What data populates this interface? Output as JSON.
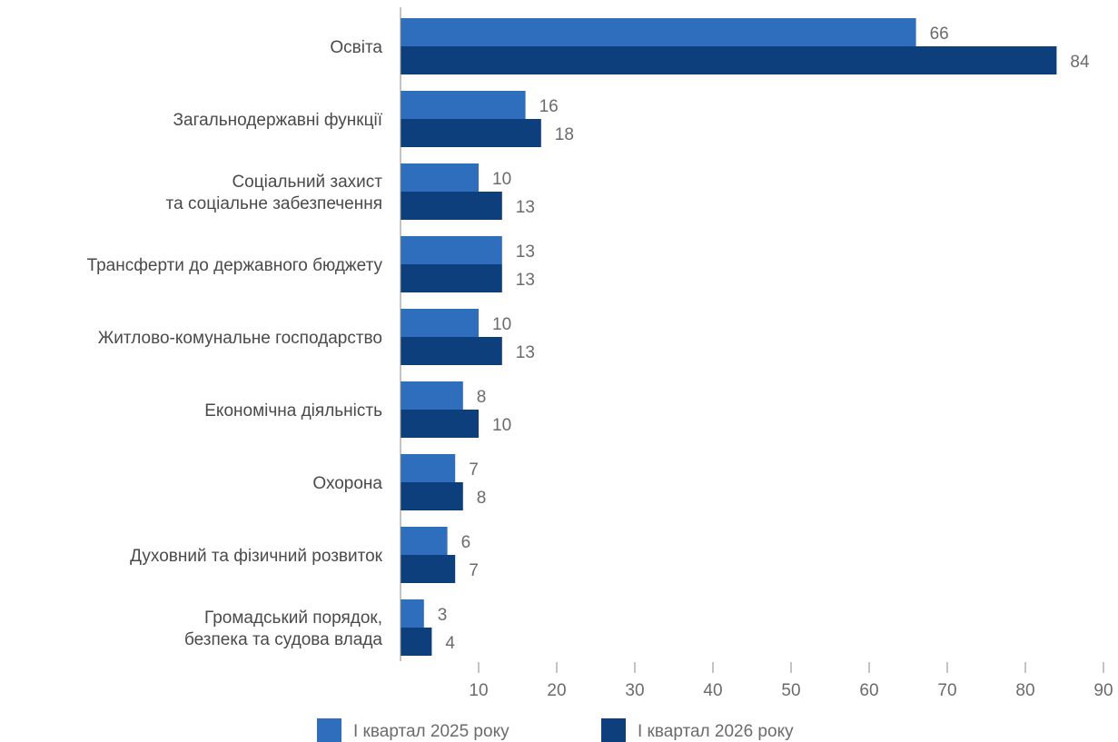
{
  "chart_data": {
    "type": "bar",
    "orientation": "horizontal",
    "categories": [
      [
        "Освіта"
      ],
      [
        "Загальнодержавні функції"
      ],
      [
        "Соціальний захист",
        "та соціальне забезпечення"
      ],
      [
        "Трансферти до державного бюджету"
      ],
      [
        "Житлово-комунальне господарство"
      ],
      [
        "Економічна діяльність"
      ],
      [
        "Охорона"
      ],
      [
        "Духовний та фізичний розвиток"
      ],
      [
        "Громадський порядок,",
        "безпека та судова влада"
      ]
    ],
    "series": [
      {
        "name": "І квартал 2025 року",
        "color": "#2f6dbd",
        "values": [
          66,
          16,
          10,
          13,
          10,
          8,
          7,
          6,
          3
        ]
      },
      {
        "name": "І квартал 2026 року",
        "color": "#0c3f7c",
        "values": [
          84,
          18,
          13,
          13,
          13,
          10,
          8,
          7,
          4
        ]
      }
    ],
    "xlim": [
      0,
      90
    ],
    "xticks": [
      10,
      20,
      30,
      40,
      50,
      60,
      70,
      80,
      90
    ],
    "legend_position": "bottom",
    "grid": false
  }
}
